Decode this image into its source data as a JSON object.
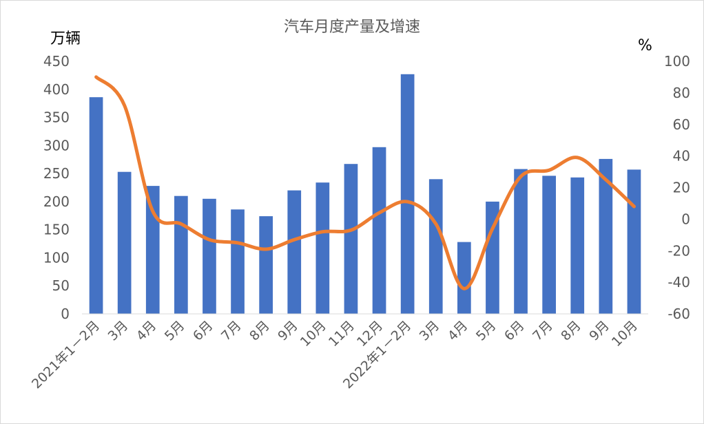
{
  "chart_data": {
    "type": "bar",
    "title": "汽车月度产量及增速",
    "ylabel_left": "万辆",
    "ylabel_right": "%",
    "categories": [
      "2021年1－2月",
      "3月",
      "4月",
      "5月",
      "6月",
      "7月",
      "8月",
      "9月",
      "10月",
      "11月",
      "12月",
      "2022年1－2月",
      "3月",
      "4月",
      "5月",
      "6月",
      "7月",
      "8月",
      "9月",
      "10月"
    ],
    "series": [
      {
        "type": "bar",
        "axis": "left",
        "color": "#4472C4",
        "values": [
          386,
          253,
          228,
          210,
          205,
          186,
          174,
          220,
          234,
          267,
          297,
          427,
          240,
          128,
          200,
          258,
          246,
          243,
          276,
          257
        ]
      },
      {
        "type": "line",
        "axis": "right",
        "color": "#ED7D31",
        "smooth": true,
        "values": [
          90,
          72,
          5,
          -3,
          -13,
          -15,
          -19,
          -13,
          -8,
          -7,
          4,
          11,
          -3,
          -44,
          -6,
          27,
          31,
          39,
          25,
          8
        ]
      }
    ],
    "y_left": {
      "min": 0,
      "max": 450,
      "ticks": [
        "0",
        "50",
        "100",
        "150",
        "200",
        "250",
        "300",
        "350",
        "400",
        "450"
      ]
    },
    "y_right": {
      "min": -60,
      "max": 100,
      "ticks": [
        "-60",
        "-40",
        "-20",
        "0",
        "20",
        "40",
        "60",
        "80",
        "100"
      ]
    },
    "grid": false,
    "legend": "none"
  }
}
